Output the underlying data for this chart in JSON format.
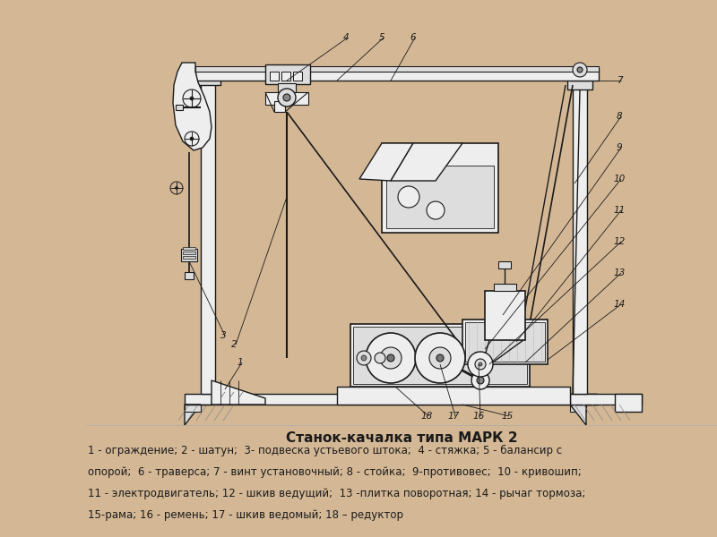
{
  "title": "Станок-качалка типа МАРК 2",
  "desc1": "1 - ограждение; 2 - шатун;  3- подвеска устьевого штока;  4 - стяжка; 5 - балансир с",
  "desc2": "опорой;  6 - траверса; 7 - винт установочный; 8 - стойка;  9-противовес;  10 - кривошип;",
  "desc3": "11 - электродвигатель; 12 - шкив ведущий;  13 -плитка поворотная; 14 - рычаг тормоза;",
  "desc4": "15-рама; 16 - ремень; 17 - шкив ведомый; 18 – редуктор",
  "bg_tan": "#d4b896",
  "bg_white": "#f8f6f0",
  "lc": "#1a1a1a",
  "lc2": "#333333",
  "fc_light": "#eeeeee",
  "fc_mid": "#dddddd",
  "fc_dark": "#cccccc"
}
